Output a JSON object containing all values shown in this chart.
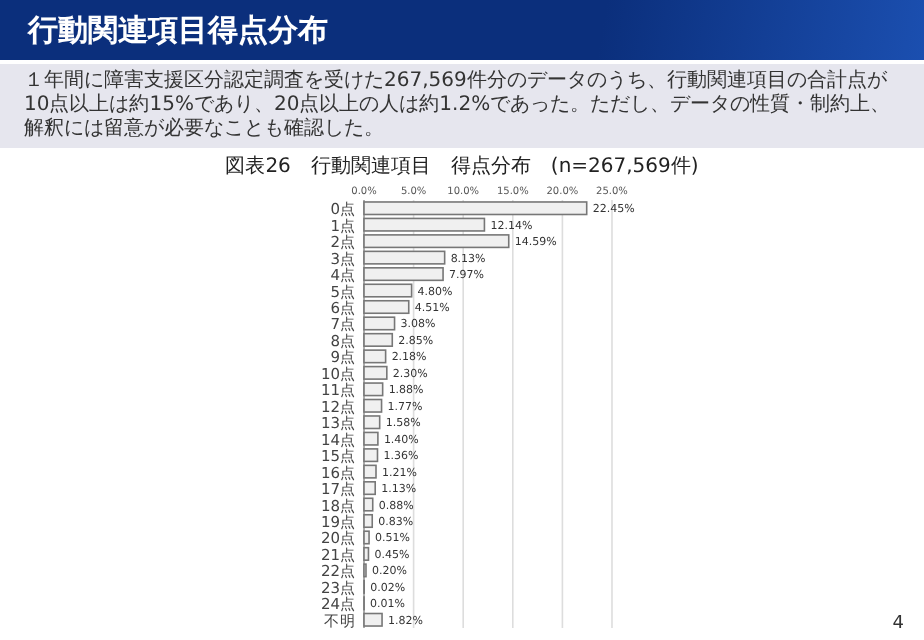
{
  "chart_data": {
    "type": "bar",
    "orientation": "horizontal",
    "title": "行動関連項目得点分布",
    "subtitle": "１年間に障害支援区分認定調査を受けた267,569件分のデータのうち、行動関連項目の合計点が10点以上は約15%であり、20点以上の人は約1.2%であった。ただし、データの性質・制約上、解釈には留意が必要なことも確認した。",
    "annotations": [
      "図表26　行動関連項目　得点分布　(n=267,569件)",
      "4"
    ],
    "categories": [
      "0点",
      "1点",
      "2点",
      "3点",
      "4点",
      "5点",
      "6点",
      "7点",
      "8点",
      "9点",
      "10点",
      "11点",
      "12点",
      "13点",
      "14点",
      "15点",
      "16点",
      "17点",
      "18点",
      "19点",
      "20点",
      "21点",
      "22点",
      "23点",
      "24点",
      "不明"
    ],
    "values": [
      22.45,
      12.14,
      14.59,
      8.13,
      7.97,
      4.8,
      4.51,
      3.08,
      2.85,
      2.18,
      2.3,
      1.88,
      1.77,
      1.58,
      1.4,
      1.36,
      1.21,
      1.13,
      0.88,
      0.83,
      0.51,
      0.45,
      0.2,
      0.02,
      0.01,
      1.82
    ],
    "value_labels": [
      "22.45%",
      "12.14%",
      "14.59%",
      "8.13%",
      "7.97%",
      "4.80%",
      "4.51%",
      "3.08%",
      "2.85%",
      "2.18%",
      "2.30%",
      "1.88%",
      "1.77%",
      "1.58%",
      "1.40%",
      "1.36%",
      "1.21%",
      "1.13%",
      "0.88%",
      "0.83%",
      "0.51%",
      "0.45%",
      "0.20%",
      "0.02%",
      "0.01%",
      "1.82%"
    ],
    "color": "#f0f0f0",
    "xlim": [
      0,
      25
    ],
    "xticks": [
      {
        "value": 0,
        "label": "0.0%"
      },
      {
        "value": 5,
        "label": "5.0%"
      },
      {
        "value": 10,
        "label": "10.0%"
      },
      {
        "value": 15,
        "label": "15.0%"
      },
      {
        "value": 20,
        "label": "20.0%"
      },
      {
        "value": 25,
        "label": "25.0%"
      }
    ],
    "grid": "x"
  }
}
